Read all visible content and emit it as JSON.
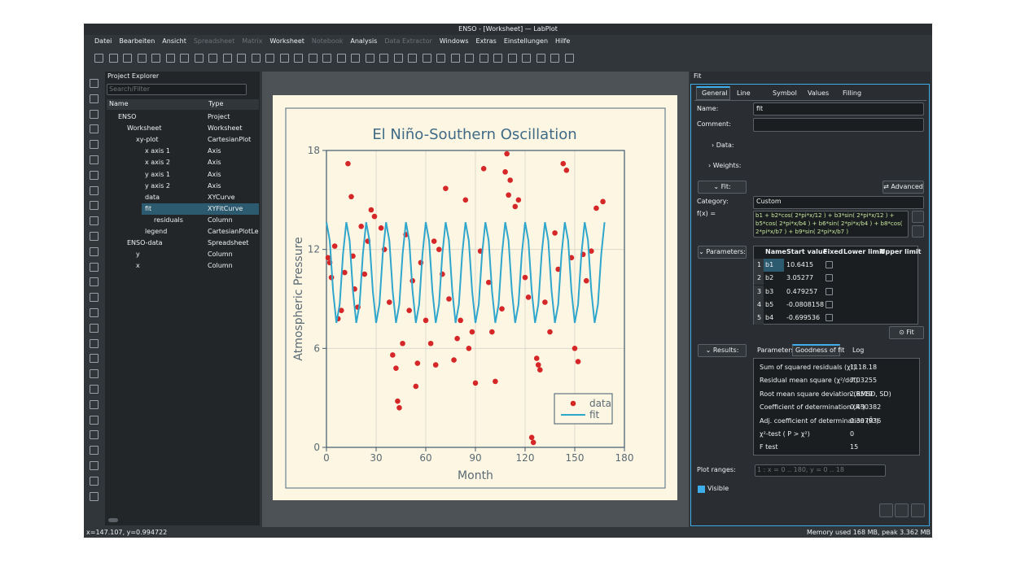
{
  "window": {
    "title": "ENSO - [Worksheet] — LabPlot"
  },
  "menu": [
    {
      "label": "Datei",
      "enabled": true
    },
    {
      "label": "Bearbeiten",
      "enabled": true
    },
    {
      "label": "Ansicht",
      "enabled": true
    },
    {
      "label": "Spreadsheet",
      "enabled": false
    },
    {
      "label": "Matrix",
      "enabled": false
    },
    {
      "label": "Worksheet",
      "enabled": true
    },
    {
      "label": "Notebook",
      "enabled": false
    },
    {
      "label": "Analysis",
      "enabled": true
    },
    {
      "label": "Data Extractor",
      "enabled": false
    },
    {
      "label": "Windows",
      "enabled": true
    },
    {
      "label": "Extras",
      "enabled": true
    },
    {
      "label": "Einstellungen",
      "enabled": true
    },
    {
      "label": "Hilfe",
      "enabled": true
    }
  ],
  "project_explorer": {
    "title": "Project Explorer",
    "search_placeholder": "Search/Filter",
    "columns": [
      "Name",
      "Type"
    ],
    "rows": [
      {
        "name": "ENSO",
        "type": "Project",
        "level": 0,
        "selected": false
      },
      {
        "name": "Worksheet",
        "type": "Worksheet",
        "level": 1,
        "selected": false
      },
      {
        "name": "xy-plot",
        "type": "CartesianPlot",
        "level": 2,
        "selected": false
      },
      {
        "name": "x axis 1",
        "type": "Axis",
        "level": 3,
        "selected": false
      },
      {
        "name": "x axis 2",
        "type": "Axis",
        "level": 3,
        "selected": false
      },
      {
        "name": "y axis 1",
        "type": "Axis",
        "level": 3,
        "selected": false
      },
      {
        "name": "y axis 2",
        "type": "Axis",
        "level": 3,
        "selected": false
      },
      {
        "name": "data",
        "type": "XYCurve",
        "level": 3,
        "selected": false
      },
      {
        "name": "fit",
        "type": "XYFitCurve",
        "level": 3,
        "selected": true
      },
      {
        "name": "residuals",
        "type": "Column",
        "level": 4,
        "selected": false
      },
      {
        "name": "legend",
        "type": "CartesianPlotLegen",
        "level": 3,
        "selected": false
      },
      {
        "name": "ENSO-data",
        "type": "Spreadsheet",
        "level": 1,
        "selected": false
      },
      {
        "name": "y",
        "type": "Column",
        "level": 2,
        "selected": false
      },
      {
        "name": "x",
        "type": "Column",
        "level": 2,
        "selected": false
      }
    ]
  },
  "plot": {
    "type": "scatter",
    "title": "El Niño-Southern Oscillation",
    "xlabel": "Month",
    "ylabel": "Atmospheric Pressure",
    "xlim": [
      0,
      180
    ],
    "ylim": [
      0,
      18
    ],
    "xticks": [
      0,
      30,
      60,
      90,
      120,
      150,
      180
    ],
    "yticks": [
      0,
      6,
      12,
      18
    ],
    "grid": true,
    "legend": "lower right",
    "series": [
      {
        "name": "data",
        "type": "scatter",
        "color": "#d62728",
        "x": [
          1,
          2,
          3,
          5,
          7,
          9,
          11,
          13,
          15,
          16,
          17,
          19,
          21,
          23,
          25,
          27,
          29,
          33,
          35,
          38,
          40,
          42,
          43,
          44,
          46,
          48,
          50,
          52,
          54,
          55,
          57,
          60,
          63,
          65,
          66,
          68,
          70,
          72,
          74,
          77,
          79,
          81,
          84,
          86,
          88,
          90,
          93,
          95,
          98,
          100,
          102,
          106,
          108,
          109,
          110,
          111,
          114,
          116,
          120,
          122,
          124,
          125,
          127,
          128,
          129,
          132,
          135,
          138,
          140,
          143,
          145,
          148,
          150,
          152,
          155,
          157,
          160,
          163,
          167
        ],
        "values": [
          11.5,
          11.2,
          10.3,
          12.2,
          7.8,
          8.3,
          10.6,
          17.2,
          15.2,
          11.6,
          9.6,
          8.5,
          13.4,
          10.5,
          12.5,
          14.4,
          14.0,
          13.3,
          12.0,
          8.8,
          5.6,
          4.8,
          2.8,
          2.4,
          6.3,
          12.9,
          8.3,
          10.1,
          3.7,
          5.1,
          11.2,
          7.7,
          6.3,
          12.5,
          5.0,
          12.0,
          10.5,
          15.7,
          9.0,
          5.3,
          6.6,
          7.7,
          15.0,
          6.0,
          7.0,
          3.9,
          11.9,
          16.9,
          10.0,
          7.0,
          4.0,
          8.4,
          16.7,
          17.8,
          15.3,
          16.2,
          14.6,
          15.0,
          10.3,
          9.1,
          0.6,
          0.3,
          5.4,
          5.0,
          4.7,
          8.8,
          7.0,
          13.0,
          10.8,
          17.2,
          16.8,
          11.5,
          6.0,
          5.2,
          11.7,
          10.1,
          11.9,
          14.5,
          14.9
        ]
      },
      {
        "name": "fit",
        "type": "line",
        "color": "#2fa6cb",
        "x": [
          0,
          2,
          4,
          6,
          8,
          10,
          12,
          14,
          16,
          18,
          20,
          22,
          24,
          26,
          28,
          30,
          32,
          34,
          36,
          38,
          40,
          42,
          44,
          46,
          48,
          50,
          52,
          54,
          56,
          58,
          60,
          62,
          64,
          66,
          68,
          70,
          72,
          74,
          76,
          78,
          80,
          82,
          84,
          86,
          88,
          90,
          92,
          94,
          96,
          98,
          100,
          102,
          104,
          106,
          108,
          110,
          112,
          114,
          116,
          118,
          120,
          122,
          124,
          126,
          128,
          130,
          132,
          134,
          136,
          138,
          140,
          142,
          144,
          146,
          148,
          150,
          152,
          154,
          156,
          158,
          160,
          162,
          164,
          166,
          168
        ],
        "values": [
          13.65,
          12.54,
          9.49,
          7.55,
          8.66,
          11.71,
          13.65,
          12.54,
          9.49,
          7.55,
          8.66,
          11.71,
          13.65,
          12.54,
          9.49,
          7.55,
          8.66,
          11.71,
          13.65,
          12.54,
          9.49,
          7.55,
          8.66,
          11.71,
          13.65,
          12.54,
          9.49,
          7.55,
          8.66,
          11.71,
          13.65,
          12.54,
          9.49,
          7.55,
          8.66,
          11.71,
          13.65,
          12.54,
          9.49,
          7.55,
          8.66,
          11.71,
          13.65,
          12.54,
          9.49,
          7.55,
          8.66,
          11.71,
          13.65,
          12.54,
          9.49,
          7.55,
          8.66,
          11.71,
          13.65,
          12.54,
          9.49,
          7.55,
          8.66,
          11.71,
          13.65,
          12.54,
          9.49,
          7.55,
          8.66,
          11.71,
          13.65,
          12.54,
          9.49,
          7.55,
          8.66,
          11.71,
          13.65,
          12.54,
          9.49,
          7.55,
          8.66,
          11.71,
          13.65,
          12.54,
          9.49,
          7.55,
          8.66,
          11.71,
          13.65
        ]
      }
    ]
  },
  "fit_panel": {
    "title": "Fit",
    "tabs": [
      "General",
      "Line",
      "Symbol",
      "Values",
      "Filling"
    ],
    "active_tab": 0,
    "name_label": "Name:",
    "name": "fit",
    "comment_label": "Comment:",
    "data_button": "Data:",
    "weights_button": "Weights:",
    "fit_button": "Fit:",
    "advanced_button": "Advanced",
    "category_label": "Category:",
    "category": "Custom",
    "fx_label": "f(x) =",
    "formula": "b1 + b2*cos( 2*pi*x/12 ) + b3*sin( 2*pi*x/12 ) + b5*cos( 2*pi*x/b4 ) + b6*sin( 2*pi*x/b4 ) + b8*cos( 2*pi*x/b7 ) + b9*sin( 2*pi*x/b7 )",
    "parameters_button": "Parameters:",
    "parameter_columns": [
      "Name",
      "Start value",
      "Fixed",
      "Lower limit",
      "Upper limit"
    ],
    "parameters": [
      {
        "index": 1,
        "name": "b1",
        "start": 10.6415,
        "fixed": false
      },
      {
        "index": 2,
        "name": "b2",
        "start": 3.05277,
        "fixed": false
      },
      {
        "index": 3,
        "name": "b3",
        "start": 0.479257,
        "fixed": false
      },
      {
        "index": 4,
        "name": "b5",
        "start": -0.0808158,
        "fixed": false
      },
      {
        "index": 5,
        "name": "b4",
        "start": -0.699536,
        "fixed": false
      }
    ],
    "run_button": "Fit",
    "results_button": "Results:",
    "result_tabs": [
      "Parameters",
      "Goodness of fit",
      "Log"
    ],
    "active_result_tab": 1,
    "goodness": [
      {
        "label": "Sum of squared residuals (χ²)",
        "value": 1118.18
      },
      {
        "label": "Residual mean square (χ²/dof)",
        "value": 7.03255
      },
      {
        "label": "Root mean square deviation (RMSD, SD)",
        "value": 2.6519
      },
      {
        "label": "Coefficient of determination (R²)",
        "value": 0.430382
      },
      {
        "label": "Adj. coefficient of determination (R̄²)",
        "value": 0.397936
      },
      {
        "label": "χ²-test ( P > χ²)",
        "value": 0
      },
      {
        "label": "F test",
        "value": 15
      }
    ],
    "plot_ranges_label": "Plot ranges:",
    "plot_range": "1 : x = 0 .. 180, y = 0 .. 18",
    "visible_label": "Visible",
    "visible": true
  },
  "status": {
    "left": "x=147.107, y=0.994722",
    "right": "Memory used 168 MB, peak 3.362 MB"
  }
}
